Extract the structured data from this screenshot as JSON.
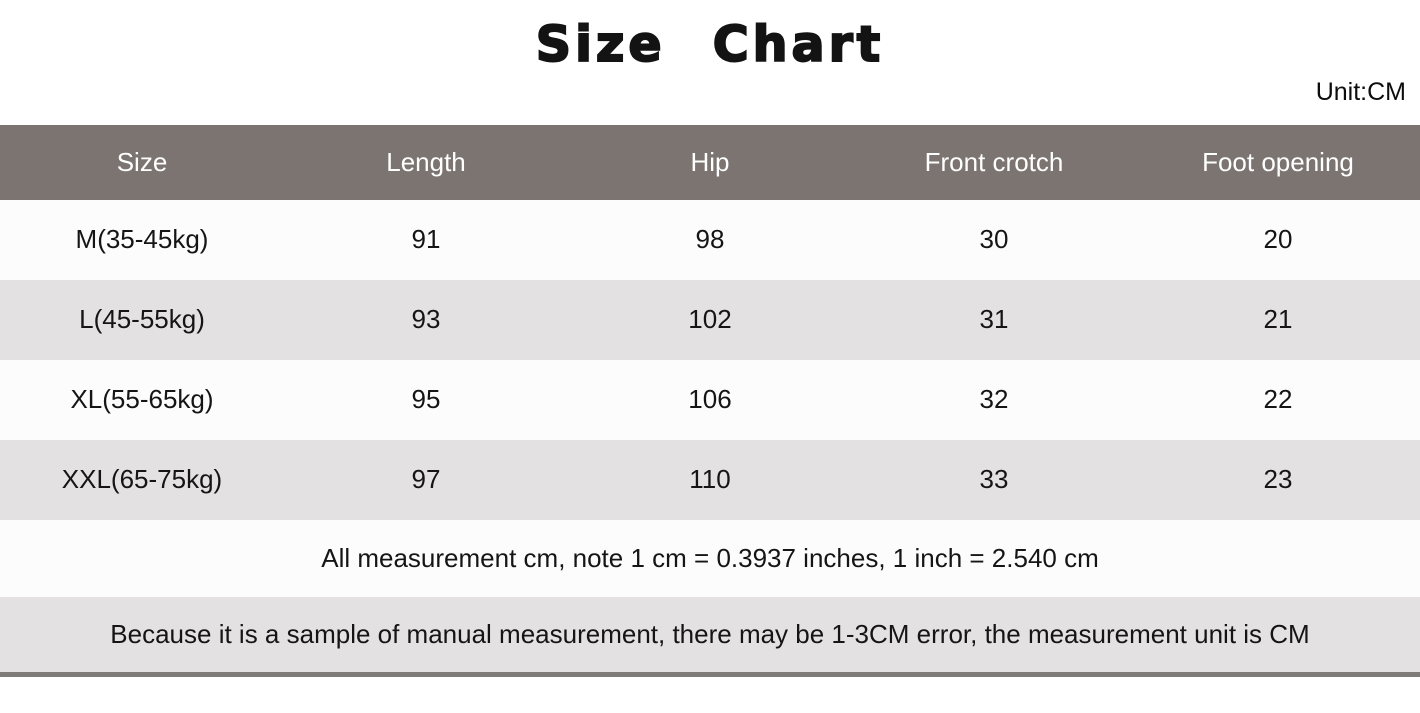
{
  "page": {
    "title": "Size Chart",
    "unit_label": "Unit:CM"
  },
  "table": {
    "headers": [
      "Size",
      "Length",
      "Hip",
      "Front crotch",
      "Foot opening"
    ],
    "rows": [
      [
        "M(35-45kg)",
        "91",
        "98",
        "30",
        "20"
      ],
      [
        "L(45-55kg)",
        "93",
        "102",
        "31",
        "21"
      ],
      [
        "XL(55-65kg)",
        "95",
        "106",
        "32",
        "22"
      ],
      [
        "XXL(65-75kg)",
        "97",
        "110",
        "33",
        "23"
      ]
    ]
  },
  "notes": {
    "conversion": "All measurement cm, note 1 cm = 0.3937 inches, 1 inch = 2.540 cm",
    "disclaimer": "Because it is a sample of manual measurement, there may be 1-3CM error, the measurement unit is CM"
  },
  "colors": {
    "header_bg": "#7b7471",
    "header_text": "#ffffff",
    "row_bg": "#fdfcfc",
    "row_alt_bg": "#e3e1e1",
    "text": "#151515",
    "bottom_bar": "#7f7b79",
    "page_bg": "#ffffff"
  },
  "chart_data": {
    "type": "table",
    "title": "Size Chart",
    "unit": "CM",
    "columns": [
      "Size",
      "Length",
      "Hip",
      "Front crotch",
      "Foot opening"
    ],
    "rows": [
      [
        "M(35-45kg)",
        91,
        98,
        30,
        20
      ],
      [
        "L(45-55kg)",
        93,
        102,
        31,
        21
      ],
      [
        "XL(55-65kg)",
        95,
        106,
        32,
        22
      ],
      [
        "XXL(65-75kg)",
        97,
        110,
        33,
        23
      ]
    ],
    "notes": [
      "All measurement cm, note 1 cm = 0.3937 inches, 1 inch = 2.540 cm",
      "Because it is a sample of manual measurement, there may be 1-3CM error, the measurement unit is CM"
    ],
    "layout_hints": {
      "header_style": "dark-band-white-text",
      "row_striping": "white / light-gray alternating",
      "alignment": "center"
    }
  }
}
